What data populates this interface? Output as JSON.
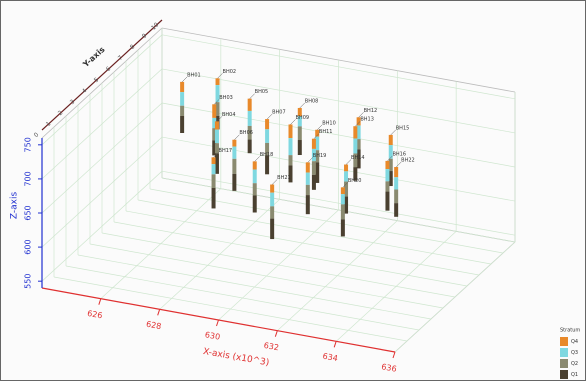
{
  "chart_data": {
    "type": "borehole3d",
    "x_label": "X-axis (x10^3)",
    "y_label": "Y-axis",
    "z_label": "Z-axis",
    "xlim": [
      624,
      636
    ],
    "xticks": [
      626,
      628,
      630,
      632,
      634,
      636
    ],
    "ylim": [
      0,
      10
    ],
    "yticks": [
      0,
      1,
      2,
      3,
      4,
      5,
      6,
      7,
      8,
      9,
      10
    ],
    "zlim": [
      540,
      760
    ],
    "zticks": [
      550,
      600,
      650,
      700,
      750
    ],
    "grid": true,
    "legend_title": "Stratum",
    "legend_position": "lower right",
    "boreholes": {
      "names": [
        "BH01",
        "BH02",
        "BH03",
        "BH04",
        "BH05",
        "BH06",
        "BH07",
        "BH08",
        "BH09",
        "BH10",
        "BH11",
        "BH12",
        "BH13",
        "BH14",
        "BH15",
        "BH16",
        "BH17",
        "BH18",
        "BH19",
        "BH20",
        "BH21",
        "BH22"
      ],
      "x": [
        625.5,
        626.5,
        627,
        627.5,
        628,
        628.5,
        629,
        629.5,
        630,
        630.5,
        631,
        631.5,
        632,
        632.5,
        633,
        633.5,
        628.2,
        629.6,
        631.2,
        632.8,
        630.6,
        634
      ],
      "y": [
        8,
        8.5,
        7,
        6,
        7.5,
        5,
        6.5,
        8,
        6,
        7,
        5.5,
        8,
        6.5,
        4.5,
        7,
        5.5,
        4,
        4,
        4.5,
        3.5,
        3,
        5
      ],
      "top": [
        725,
        730,
        720,
        715,
        728,
        712,
        722,
        718,
        730,
        710,
        725,
        720,
        735,
        715,
        722,
        712,
        700,
        705,
        708,
        700,
        695,
        715
      ]
    },
    "series": [
      {
        "name": "Q4",
        "color": "#e8892a",
        "values": [
          15,
          10,
          20,
          12,
          18,
          10,
          15,
          12,
          20,
          10,
          15,
          12,
          18,
          10,
          15,
          12,
          10,
          12,
          15,
          10,
          12,
          15
        ]
      },
      {
        "name": "Q3",
        "color": "#7fd8e0",
        "values": [
          20,
          25,
          15,
          20,
          22,
          18,
          20,
          15,
          25,
          20,
          18,
          20,
          22,
          15,
          20,
          18,
          15,
          20,
          18,
          15,
          20,
          18
        ]
      },
      {
        "name": "Q2",
        "color": "#8a8a70",
        "values": [
          15,
          20,
          18,
          15,
          20,
          22,
          18,
          20,
          15,
          18,
          20,
          15,
          20,
          22,
          18,
          15,
          20,
          18,
          15,
          22,
          18,
          20
        ]
      },
      {
        "name": "Q1",
        "color": "#4a4030",
        "values": [
          25,
          20,
          22,
          30,
          20,
          25,
          28,
          22,
          25,
          30,
          22,
          28,
          20,
          25,
          22,
          28,
          30,
          25,
          28,
          25,
          30,
          20
        ]
      }
    ]
  }
}
